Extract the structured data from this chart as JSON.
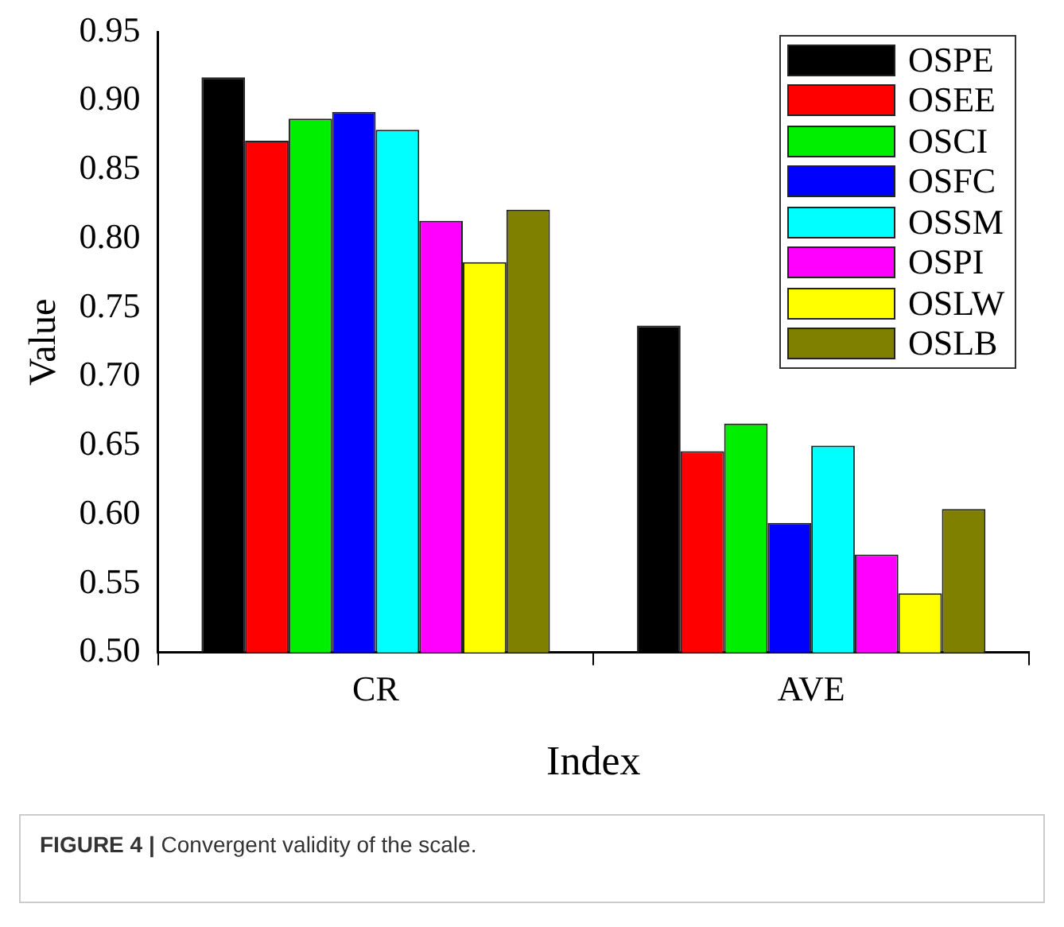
{
  "chart_data": {
    "type": "bar",
    "xlabel": "Index",
    "ylabel": "Value",
    "categories": [
      "CR",
      "AVE"
    ],
    "series": [
      {
        "name": "OSPE",
        "color": "#000000",
        "values": [
          0.917,
          0.737
        ]
      },
      {
        "name": "OSEE",
        "color": "#ff0000",
        "values": [
          0.871,
          0.646
        ]
      },
      {
        "name": "OSCI",
        "color": "#00ee00",
        "values": [
          0.887,
          0.666
        ]
      },
      {
        "name": "OSFC",
        "color": "#0000ff",
        "values": [
          0.892,
          0.594
        ]
      },
      {
        "name": "OSSM",
        "color": "#00ffff",
        "values": [
          0.879,
          0.65
        ]
      },
      {
        "name": "OSPI",
        "color": "#ff00ff",
        "values": [
          0.813,
          0.571
        ]
      },
      {
        "name": "OSLW",
        "color": "#ffff00",
        "values": [
          0.783,
          0.543
        ]
      },
      {
        "name": "OSLB",
        "color": "#808000",
        "values": [
          0.821,
          0.604
        ]
      }
    ],
    "ylim": [
      0.5,
      0.95
    ],
    "yticks": [
      {
        "value": 0.5,
        "label": "0.50"
      },
      {
        "value": 0.55,
        "label": "0.55"
      },
      {
        "value": 0.6,
        "label": "0.60"
      },
      {
        "value": 0.65,
        "label": "0.65"
      },
      {
        "value": 0.7,
        "label": "0.70"
      },
      {
        "value": 0.75,
        "label": "0.75"
      },
      {
        "value": 0.8,
        "label": "0.80"
      },
      {
        "value": 0.85,
        "label": "0.85"
      },
      {
        "value": 0.9,
        "label": "0.90"
      },
      {
        "value": 0.95,
        "label": "0.95"
      }
    ],
    "grid": false,
    "legend": "top right",
    "annotations": [
      "FIGURE 4 | Convergent validity of the scale."
    ]
  }
}
